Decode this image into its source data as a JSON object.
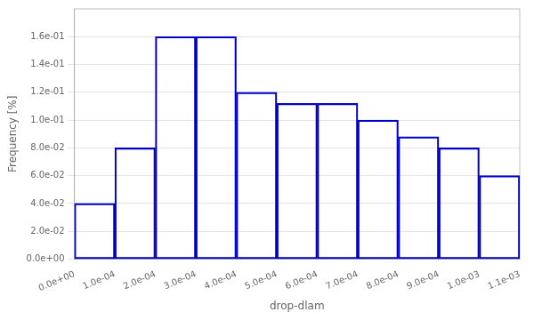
{
  "chart_data": {
    "type": "histogram",
    "bins": [
      0.0,
      0.0001,
      0.0002,
      0.0003,
      0.0004,
      0.0005,
      0.0006,
      0.0007,
      0.0008,
      0.0009,
      0.001,
      0.0011
    ],
    "values": [
      0.04,
      0.08,
      0.16,
      0.16,
      0.12,
      0.112,
      0.112,
      0.1,
      0.088,
      0.08,
      0.06
    ],
    "color": "#0000cc",
    "xlabel": "drop-dlam",
    "ylabel": "Frequency [%]",
    "xlim": [
      0.0,
      0.0011
    ],
    "ylim": [
      0.0,
      0.18
    ],
    "xticks": [
      {
        "value": 0.0,
        "label": "0.0e+00"
      },
      {
        "value": 0.0001,
        "label": "1.0e-04"
      },
      {
        "value": 0.0002,
        "label": "2.0e-04"
      },
      {
        "value": 0.0003,
        "label": "3.0e-04"
      },
      {
        "value": 0.0004,
        "label": "4.0e-04"
      },
      {
        "value": 0.0005,
        "label": "5.0e-04"
      },
      {
        "value": 0.0006,
        "label": "6.0e-04"
      },
      {
        "value": 0.0007,
        "label": "7.0e-04"
      },
      {
        "value": 0.0008,
        "label": "8.0e-04"
      },
      {
        "value": 0.0009,
        "label": "9.0e-04"
      },
      {
        "value": 0.001,
        "label": "1.0e-03"
      },
      {
        "value": 0.0011,
        "label": "1.1e-03"
      }
    ],
    "yticks": [
      {
        "value": 0.0,
        "label": "0.0e+00"
      },
      {
        "value": 0.02,
        "label": "2.0e-02"
      },
      {
        "value": 0.04,
        "label": "4.0e-02"
      },
      {
        "value": 0.06,
        "label": "6.0e-02"
      },
      {
        "value": 0.08,
        "label": "8.0e-02"
      },
      {
        "value": 0.1,
        "label": "1.0e-01"
      },
      {
        "value": 0.12,
        "label": "1.2e-01"
      },
      {
        "value": 0.14,
        "label": "1.4e-01"
      },
      {
        "value": 0.16,
        "label": "1.6e-01"
      }
    ],
    "grid": "y"
  }
}
